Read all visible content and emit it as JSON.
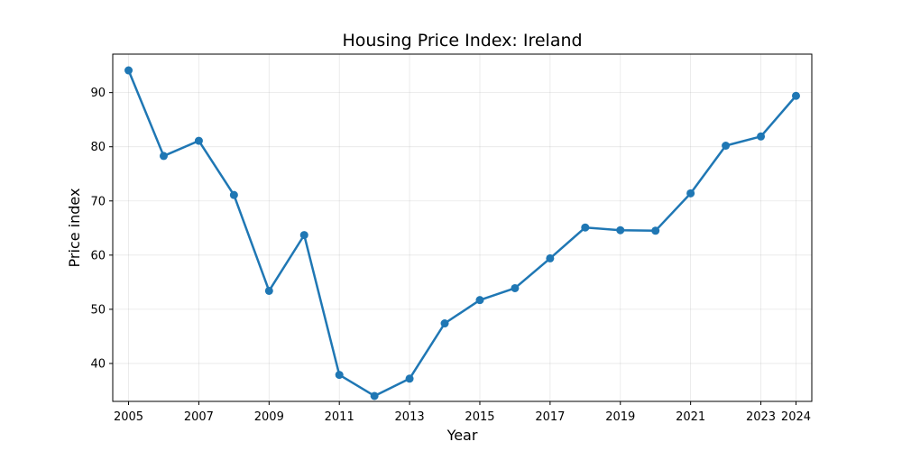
{
  "chart_data": {
    "type": "line",
    "title": "Housing Price Index: Ireland",
    "xlabel": "Year",
    "ylabel": "Price index",
    "xlim": [
      2004.55,
      2024.45
    ],
    "ylim": [
      33.0,
      97.1
    ],
    "xticks": [
      2005,
      2007,
      2009,
      2011,
      2013,
      2015,
      2017,
      2019,
      2021,
      2023,
      2024
    ],
    "yticks": [
      40,
      50,
      60,
      70,
      80,
      90
    ],
    "grid": true,
    "color": "#1f77b4",
    "series": [
      {
        "x": [
          2005,
          2006,
          2007,
          2008,
          2009,
          2010,
          2011,
          2012,
          2013,
          2014,
          2015,
          2016,
          2017,
          2018,
          2019,
          2020,
          2021,
          2022,
          2023,
          2024
        ],
        "values": [
          94.1,
          78.3,
          81.1,
          71.1,
          53.4,
          63.7,
          37.9,
          34.0,
          37.2,
          47.4,
          51.7,
          53.9,
          59.4,
          65.1,
          64.6,
          64.5,
          71.4,
          80.2,
          81.9,
          89.4
        ]
      }
    ]
  }
}
